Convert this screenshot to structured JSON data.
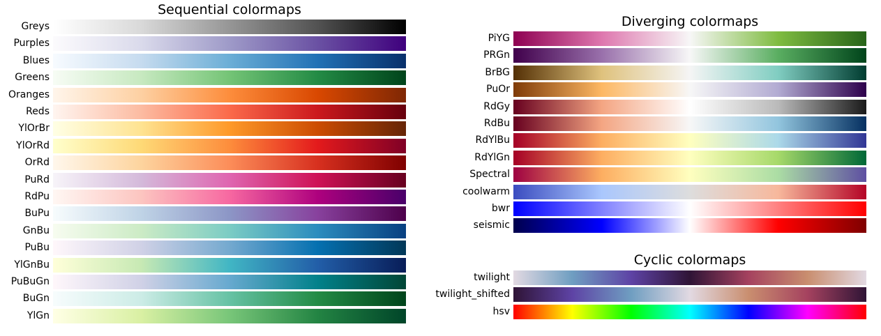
{
  "chart_data": [
    {
      "type": "colormap-gradient",
      "title": "Sequential colormaps",
      "colormaps": [
        {
          "name": "Greys",
          "colors": [
            "#ffffff",
            "#d9d9d9",
            "#969696",
            "#525252",
            "#000000"
          ]
        },
        {
          "name": "Purples",
          "colors": [
            "#fcfbfd",
            "#dadaeb",
            "#9e9ac8",
            "#6a51a3",
            "#3f007d"
          ]
        },
        {
          "name": "Blues",
          "colors": [
            "#f7fbff",
            "#c6dbef",
            "#6baed6",
            "#2171b5",
            "#08306b"
          ]
        },
        {
          "name": "Greens",
          "colors": [
            "#f7fcf5",
            "#c7e9c0",
            "#74c476",
            "#238b45",
            "#00441b"
          ]
        },
        {
          "name": "Oranges",
          "colors": [
            "#fff5eb",
            "#fdd0a2",
            "#fd8d3c",
            "#d94801",
            "#7f2704"
          ]
        },
        {
          "name": "Reds",
          "colors": [
            "#fff5f0",
            "#fcbba1",
            "#fb6a4a",
            "#cb181d",
            "#67000d"
          ]
        },
        {
          "name": "YlOrBr",
          "colors": [
            "#ffffe5",
            "#fee391",
            "#fe9929",
            "#cc4c02",
            "#662506"
          ]
        },
        {
          "name": "YlOrRd",
          "colors": [
            "#ffffcc",
            "#fed976",
            "#fd8d3c",
            "#e31a1c",
            "#800026"
          ]
        },
        {
          "name": "OrRd",
          "colors": [
            "#fff7ec",
            "#fdd49e",
            "#fc8d59",
            "#d7301f",
            "#7f0000"
          ]
        },
        {
          "name": "PuRd",
          "colors": [
            "#f7f4f9",
            "#d4b9da",
            "#df65b0",
            "#ce1256",
            "#67001f"
          ]
        },
        {
          "name": "RdPu",
          "colors": [
            "#fff7f3",
            "#fcc5c0",
            "#f768a1",
            "#ae017e",
            "#49006a"
          ]
        },
        {
          "name": "BuPu",
          "colors": [
            "#f7fcfd",
            "#bfd3e6",
            "#8c96c6",
            "#88419d",
            "#4d004b"
          ]
        },
        {
          "name": "GnBu",
          "colors": [
            "#f7fcf0",
            "#ccebc5",
            "#7bccc4",
            "#2b8cbe",
            "#084081"
          ]
        },
        {
          "name": "PuBu",
          "colors": [
            "#fff7fb",
            "#d0d1e6",
            "#74a9cf",
            "#0570b0",
            "#023858"
          ]
        },
        {
          "name": "YlGnBu",
          "colors": [
            "#ffffd9",
            "#c7e9b4",
            "#41b6c4",
            "#225ea8",
            "#081d58"
          ]
        },
        {
          "name": "PuBuGn",
          "colors": [
            "#fff7fb",
            "#d0d1e6",
            "#67a9cf",
            "#02818a",
            "#014636"
          ]
        },
        {
          "name": "BuGn",
          "colors": [
            "#f7fcfd",
            "#ccece6",
            "#66c2a4",
            "#238b45",
            "#00441b"
          ]
        },
        {
          "name": "YlGn",
          "colors": [
            "#ffffe5",
            "#d9f0a3",
            "#78c679",
            "#238443",
            "#004529"
          ]
        }
      ]
    },
    {
      "type": "colormap-gradient",
      "title": "Diverging colormaps",
      "colormaps": [
        {
          "name": "PiYG",
          "colors": [
            "#8e0152",
            "#de77ae",
            "#f7f7f7",
            "#7fbc41",
            "#276419"
          ]
        },
        {
          "name": "PRGn",
          "colors": [
            "#40004b",
            "#9970ab",
            "#f7f7f7",
            "#5aae61",
            "#00441b"
          ]
        },
        {
          "name": "BrBG",
          "colors": [
            "#543005",
            "#dfc27d",
            "#f5f5f5",
            "#80cdc1",
            "#003c30"
          ]
        },
        {
          "name": "PuOr",
          "colors": [
            "#7f3b08",
            "#fdb863",
            "#f7f7f7",
            "#b2abd2",
            "#2d004b"
          ]
        },
        {
          "name": "RdGy",
          "colors": [
            "#67001f",
            "#f4a582",
            "#ffffff",
            "#bababa",
            "#1a1a1a"
          ]
        },
        {
          "name": "RdBu",
          "colors": [
            "#67001f",
            "#f4a582",
            "#f7f7f7",
            "#92c5de",
            "#053061"
          ]
        },
        {
          "name": "RdYlBu",
          "colors": [
            "#a50026",
            "#fdae61",
            "#ffffbf",
            "#abd9e9",
            "#313695"
          ]
        },
        {
          "name": "RdYlGn",
          "colors": [
            "#a50026",
            "#fdae61",
            "#ffffbf",
            "#a6d96a",
            "#006837"
          ]
        },
        {
          "name": "Spectral",
          "colors": [
            "#9e0142",
            "#fdae61",
            "#ffffbf",
            "#abdda4",
            "#5e4fa2"
          ]
        },
        {
          "name": "coolwarm",
          "colors": [
            "#3b4cc0",
            "#aac7fd",
            "#dddddd",
            "#f7b89c",
            "#b40426"
          ]
        },
        {
          "name": "bwr",
          "colors": [
            "#0000ff",
            "#8080ff",
            "#ffffff",
            "#ff8080",
            "#ff0000"
          ]
        },
        {
          "name": "seismic",
          "colors": [
            "#00004c",
            "#0000ff",
            "#ffffff",
            "#ff0000",
            "#7f0000"
          ]
        }
      ]
    },
    {
      "type": "colormap-gradient",
      "title": "Cyclic colormaps",
      "colormaps": [
        {
          "name": "twilight",
          "colors": [
            "#e2d9e2",
            "#6f9ec1",
            "#5e43a5",
            "#2f1436",
            "#a5425f",
            "#c98e6f",
            "#e2d9e2"
          ]
        },
        {
          "name": "twilight_shifted",
          "colors": [
            "#2f1436",
            "#5e43a5",
            "#6f9ec1",
            "#e2d9e2",
            "#c98e6f",
            "#a5425f",
            "#2f1436"
          ]
        },
        {
          "name": "hsv",
          "colors": [
            "#ff0000",
            "#ffff00",
            "#00ff00",
            "#00ffff",
            "#0000ff",
            "#ff00ff",
            "#ff0000"
          ]
        }
      ]
    }
  ]
}
